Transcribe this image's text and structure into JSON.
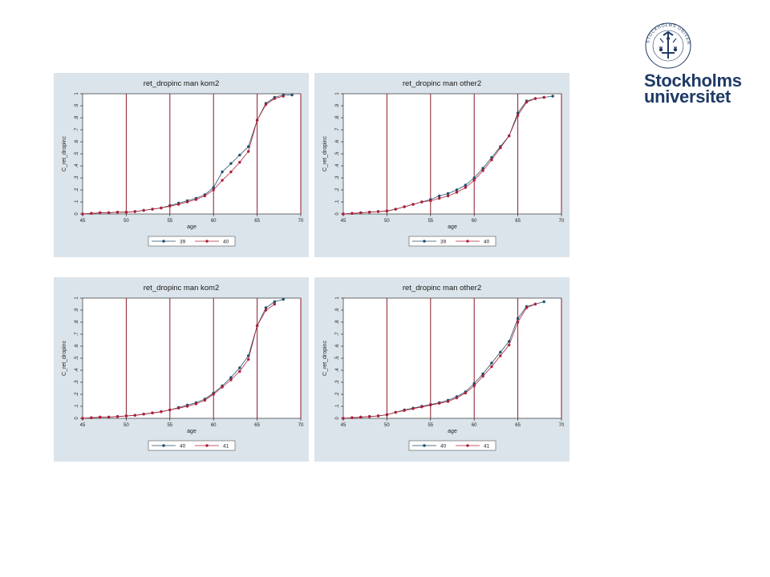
{
  "colors": {
    "series_a": "#1f4e6b",
    "series_b": "#b02038",
    "panel_bg": "#dbe4ea",
    "plot_bg": "#ffffff",
    "vline": "#8b1a2b",
    "logo": "#1f3a66"
  },
  "logo": {
    "line1": "Stockholms",
    "line2": "universitet",
    "seal_text": "STOCKHOLMS UNIVERSITET",
    "icon": "university-seal-icon"
  },
  "chart_data": [
    {
      "type": "line",
      "title": "ret_dropinc man kom2",
      "xlabel": "age",
      "ylabel": "C_ret_dropinc",
      "xlim": [
        45,
        70
      ],
      "ylim": [
        0,
        1
      ],
      "xticks": [
        "45",
        "50",
        "55",
        "60",
        "65",
        "70"
      ],
      "yticks": [
        "0",
        ".1",
        ".2",
        ".3",
        ".4",
        ".5",
        ".6",
        ".7",
        ".8",
        ".9",
        "1"
      ],
      "vlines": [
        50,
        55,
        60,
        65,
        70
      ],
      "grid": false,
      "legend_position": "bottom",
      "series": [
        {
          "name": "39",
          "x": [
            45,
            46,
            47,
            48,
            49,
            50,
            51,
            52,
            53,
            54,
            55,
            56,
            57,
            58,
            59,
            60,
            61,
            62,
            63,
            64,
            65,
            66,
            67,
            68,
            69
          ],
          "y": [
            0.0,
            0.005,
            0.01,
            0.01,
            0.015,
            0.015,
            0.02,
            0.03,
            0.04,
            0.05,
            0.07,
            0.09,
            0.11,
            0.13,
            0.16,
            0.22,
            0.35,
            0.42,
            0.49,
            0.56,
            0.78,
            0.92,
            0.97,
            0.99,
            0.99
          ]
        },
        {
          "name": "40",
          "x": [
            45,
            46,
            47,
            48,
            49,
            50,
            51,
            52,
            53,
            54,
            55,
            56,
            57,
            58,
            59,
            60,
            61,
            62,
            63,
            64,
            65,
            66,
            67,
            68
          ],
          "y": [
            0.0,
            0.005,
            0.01,
            0.01,
            0.015,
            0.015,
            0.02,
            0.03,
            0.04,
            0.05,
            0.065,
            0.08,
            0.1,
            0.12,
            0.15,
            0.2,
            0.28,
            0.35,
            0.43,
            0.52,
            0.78,
            0.91,
            0.96,
            0.98
          ]
        }
      ]
    },
    {
      "type": "line",
      "title": "ret_dropinc man other2",
      "xlabel": "age",
      "ylabel": "C_ret_dropinc",
      "xlim": [
        45,
        70
      ],
      "ylim": [
        0,
        1
      ],
      "xticks": [
        "45",
        "50",
        "55",
        "60",
        "65",
        "70"
      ],
      "yticks": [
        "0",
        ".1",
        ".2",
        ".3",
        ".4",
        ".5",
        ".6",
        ".7",
        ".8",
        ".9",
        "1"
      ],
      "vlines": [
        50,
        55,
        60,
        65,
        70
      ],
      "grid": false,
      "legend_position": "bottom",
      "series": [
        {
          "name": "39",
          "x": [
            45,
            46,
            47,
            48,
            49,
            50,
            51,
            52,
            53,
            54,
            55,
            56,
            57,
            58,
            59,
            60,
            61,
            62,
            63,
            64,
            65,
            66,
            67,
            68,
            69
          ],
          "y": [
            0.0,
            0.005,
            0.01,
            0.015,
            0.02,
            0.025,
            0.04,
            0.06,
            0.08,
            0.1,
            0.12,
            0.15,
            0.17,
            0.2,
            0.24,
            0.3,
            0.38,
            0.47,
            0.56,
            0.65,
            0.84,
            0.94,
            0.96,
            0.97,
            0.98
          ]
        },
        {
          "name": "40",
          "x": [
            45,
            46,
            47,
            48,
            49,
            50,
            51,
            52,
            53,
            54,
            55,
            56,
            57,
            58,
            59,
            60,
            61,
            62,
            63,
            64,
            65,
            66,
            67,
            68
          ],
          "y": [
            0.0,
            0.005,
            0.01,
            0.015,
            0.02,
            0.025,
            0.04,
            0.06,
            0.08,
            0.1,
            0.11,
            0.13,
            0.15,
            0.18,
            0.22,
            0.28,
            0.36,
            0.45,
            0.55,
            0.65,
            0.82,
            0.93,
            0.96,
            0.97
          ]
        }
      ]
    },
    {
      "type": "line",
      "title": "ret_dropinc man kom2",
      "xlabel": "age",
      "ylabel": "C_ret_dropinc",
      "xlim": [
        45,
        70
      ],
      "ylim": [
        0,
        1
      ],
      "xticks": [
        "45",
        "50",
        "55",
        "60",
        "65",
        "70"
      ],
      "yticks": [
        "0",
        ".1",
        ".2",
        ".3",
        ".4",
        ".5",
        ".6",
        ".7",
        ".8",
        ".9",
        "1"
      ],
      "vlines": [
        50,
        55,
        60,
        65,
        70
      ],
      "grid": false,
      "legend_position": "bottom",
      "series": [
        {
          "name": "40",
          "x": [
            45,
            46,
            47,
            48,
            49,
            50,
            51,
            52,
            53,
            54,
            55,
            56,
            57,
            58,
            59,
            60,
            61,
            62,
            63,
            64,
            65,
            66,
            67,
            68
          ],
          "y": [
            0.0,
            0.005,
            0.01,
            0.01,
            0.015,
            0.02,
            0.025,
            0.035,
            0.045,
            0.055,
            0.07,
            0.09,
            0.11,
            0.13,
            0.16,
            0.21,
            0.27,
            0.34,
            0.42,
            0.52,
            0.77,
            0.92,
            0.97,
            0.99
          ]
        },
        {
          "name": "41",
          "x": [
            45,
            46,
            47,
            48,
            49,
            50,
            51,
            52,
            53,
            54,
            55,
            56,
            57,
            58,
            59,
            60,
            61,
            62,
            63,
            64,
            65,
            66,
            67
          ],
          "y": [
            0.0,
            0.005,
            0.01,
            0.01,
            0.015,
            0.02,
            0.025,
            0.035,
            0.045,
            0.055,
            0.07,
            0.085,
            0.1,
            0.12,
            0.15,
            0.2,
            0.26,
            0.32,
            0.39,
            0.49,
            0.77,
            0.9,
            0.95
          ]
        }
      ]
    },
    {
      "type": "line",
      "title": "ret_dropinc man other2",
      "xlabel": "age",
      "ylabel": "C_ret_dropinc",
      "xlim": [
        45,
        70
      ],
      "ylim": [
        0,
        1
      ],
      "xticks": [
        "45",
        "50",
        "55",
        "60",
        "65",
        "70"
      ],
      "yticks": [
        "0",
        ".1",
        ".2",
        ".3",
        ".4",
        ".5",
        ".6",
        ".7",
        ".8",
        ".9",
        "1"
      ],
      "vlines": [
        50,
        55,
        60,
        65,
        70
      ],
      "grid": false,
      "legend_position": "bottom",
      "series": [
        {
          "name": "40",
          "x": [
            45,
            46,
            47,
            48,
            49,
            50,
            51,
            52,
            53,
            54,
            55,
            56,
            57,
            58,
            59,
            60,
            61,
            62,
            63,
            64,
            65,
            66,
            67,
            68
          ],
          "y": [
            0.0,
            0.005,
            0.01,
            0.015,
            0.02,
            0.03,
            0.05,
            0.07,
            0.085,
            0.1,
            0.115,
            0.13,
            0.15,
            0.18,
            0.22,
            0.29,
            0.37,
            0.46,
            0.55,
            0.64,
            0.83,
            0.93,
            0.95,
            0.97
          ]
        },
        {
          "name": "41",
          "x": [
            45,
            46,
            47,
            48,
            49,
            50,
            51,
            52,
            53,
            54,
            55,
            56,
            57,
            58,
            59,
            60,
            61,
            62,
            63,
            64,
            65,
            66,
            67
          ],
          "y": [
            0.0,
            0.005,
            0.01,
            0.015,
            0.02,
            0.03,
            0.05,
            0.065,
            0.08,
            0.095,
            0.11,
            0.125,
            0.14,
            0.17,
            0.21,
            0.27,
            0.35,
            0.43,
            0.52,
            0.61,
            0.8,
            0.92,
            0.95
          ]
        }
      ]
    }
  ]
}
